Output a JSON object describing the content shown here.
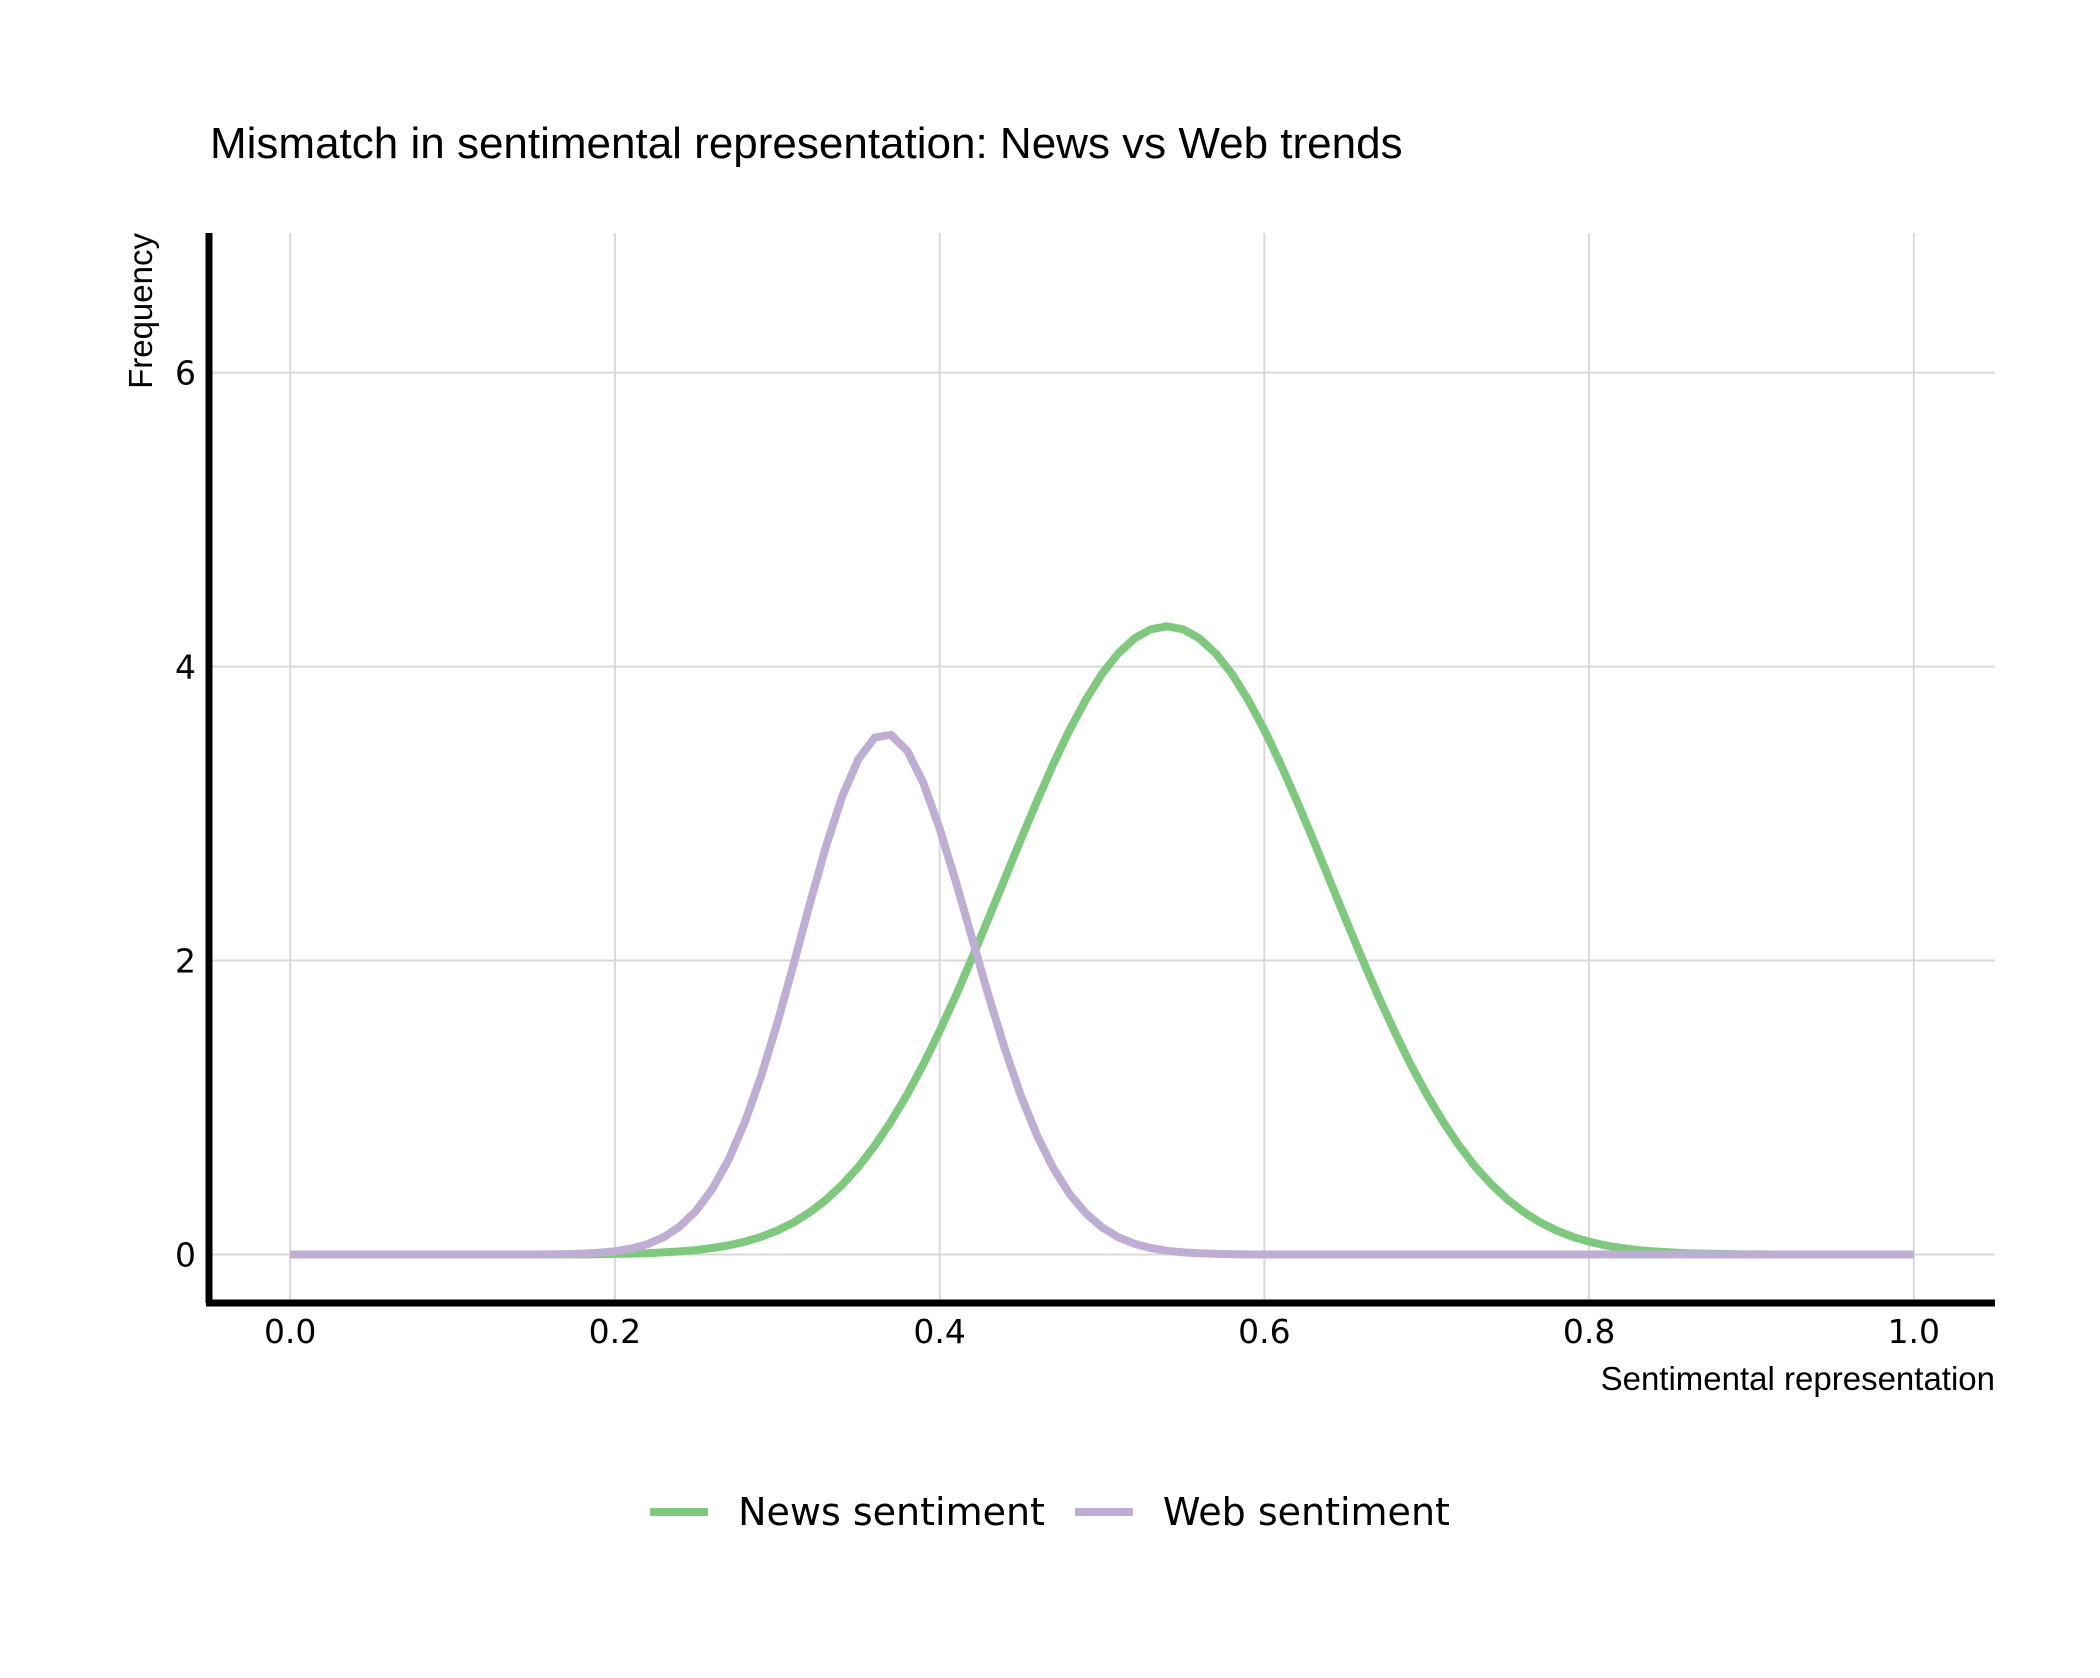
{
  "chart_data": {
    "type": "line",
    "title": "Mismatch in sentimental representation: News vs Web trends",
    "xlabel": "Sentimental representation",
    "ylabel": "Frequency",
    "xlim": [
      -0.05,
      1.05
    ],
    "ylim": [
      -0.33,
      6.95
    ],
    "x_ticks": [
      0.0,
      0.2,
      0.4,
      0.6,
      0.8,
      1.0
    ],
    "x_tick_labels": [
      "0.0",
      "0.2",
      "0.4",
      "0.6",
      "0.8",
      "1.0"
    ],
    "y_ticks": [
      0,
      2,
      4,
      6
    ],
    "y_tick_labels": [
      "0",
      "2",
      "4",
      "6"
    ],
    "grid": true,
    "legend": "bottom-center",
    "x": [
      0.0,
      0.01,
      0.02,
      0.03,
      0.04,
      0.05,
      0.06,
      0.07,
      0.08,
      0.09,
      0.1,
      0.11,
      0.12,
      0.13,
      0.14,
      0.15,
      0.16,
      0.17,
      0.18,
      0.19,
      0.2,
      0.21,
      0.22,
      0.23,
      0.24,
      0.25,
      0.26,
      0.27,
      0.28,
      0.29,
      0.3,
      0.31,
      0.32,
      0.33,
      0.34,
      0.35,
      0.36,
      0.37,
      0.38,
      0.39,
      0.4,
      0.41,
      0.42,
      0.43,
      0.44,
      0.45,
      0.46,
      0.47,
      0.48,
      0.49,
      0.5,
      0.51,
      0.52,
      0.53,
      0.54,
      0.55,
      0.56,
      0.57,
      0.58,
      0.59,
      0.6,
      0.61,
      0.62,
      0.63,
      0.64,
      0.65,
      0.66,
      0.67,
      0.68,
      0.69,
      0.7,
      0.71,
      0.72,
      0.73,
      0.74,
      0.75,
      0.76,
      0.77,
      0.78,
      0.79,
      0.8,
      0.81,
      0.82,
      0.83,
      0.84,
      0.85,
      0.86,
      0.87,
      0.88,
      0.89,
      0.9,
      0.91,
      0.92,
      0.93,
      0.94,
      0.95,
      0.96,
      0.97,
      0.98,
      0.99,
      1.0
    ],
    "series": [
      {
        "name": "News sentiment",
        "color": "#7fc97f",
        "values": [
          0,
          0,
          0,
          0,
          0,
          0,
          0,
          0,
          0,
          0,
          0,
          0,
          0,
          0,
          0,
          0,
          0,
          0.001,
          0.001,
          0.002,
          0.004,
          0.006,
          0.009,
          0.014,
          0.021,
          0.03,
          0.044,
          0.062,
          0.087,
          0.12,
          0.163,
          0.218,
          0.287,
          0.372,
          0.475,
          0.597,
          0.74,
          0.904,
          1.089,
          1.295,
          1.52,
          1.762,
          2.018,
          2.283,
          2.553,
          2.823,
          3.086,
          3.337,
          3.568,
          3.774,
          3.95,
          4.09,
          4.192,
          4.254,
          4.274,
          4.254,
          4.192,
          4.09,
          3.95,
          3.774,
          3.568,
          3.337,
          3.086,
          2.823,
          2.553,
          2.283,
          2.018,
          1.762,
          1.52,
          1.295,
          1.089,
          0.904,
          0.74,
          0.597,
          0.475,
          0.372,
          0.287,
          0.218,
          0.163,
          0.12,
          0.087,
          0.062,
          0.044,
          0.03,
          0.021,
          0.014,
          0.009,
          0.006,
          0.004,
          0.002,
          0.001,
          0.001,
          0,
          0,
          0,
          0,
          0,
          0,
          0,
          0,
          0
        ]
      },
      {
        "name": "Web sentiment",
        "color": "#beaed4",
        "values": [
          0,
          0,
          0,
          0,
          0,
          0,
          0,
          0,
          0,
          0,
          0,
          0,
          0,
          0,
          0,
          0,
          0.001,
          0.003,
          0.006,
          0.012,
          0.022,
          0.04,
          0.07,
          0.118,
          0.191,
          0.297,
          0.446,
          0.645,
          0.9,
          1.211,
          1.574,
          1.972,
          2.384,
          2.777,
          3.117,
          3.372,
          3.517,
          3.536,
          3.428,
          3.207,
          2.898,
          2.535,
          2.151,
          1.767,
          1.404,
          1.082,
          0.809,
          0.587,
          0.412,
          0.281,
          0.185,
          0.118,
          0.073,
          0.044,
          0.025,
          0.014,
          0.008,
          0.004,
          0.002,
          0.001,
          0,
          0,
          0,
          0,
          0,
          0,
          0,
          0,
          0,
          0,
          0,
          0,
          0,
          0,
          0,
          0,
          0,
          0,
          0,
          0,
          0,
          0,
          0,
          0,
          0,
          0,
          0,
          0,
          0,
          0,
          0,
          0,
          0,
          0,
          0,
          0,
          0,
          0,
          0,
          0,
          0
        ]
      }
    ]
  }
}
